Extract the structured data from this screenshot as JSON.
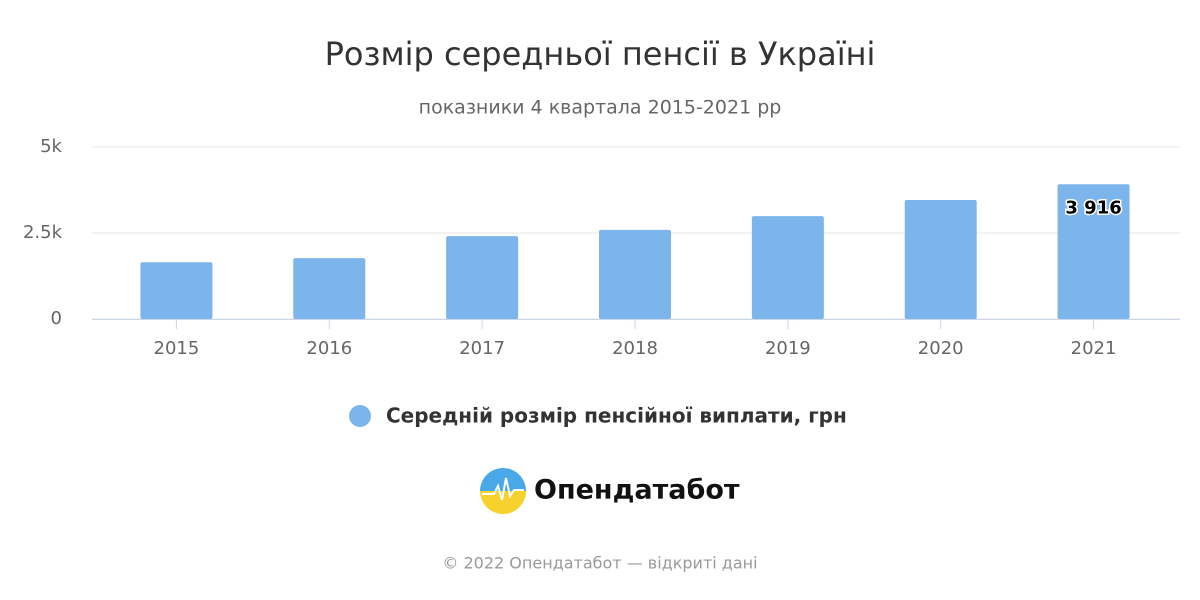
{
  "chart_data": {
    "type": "bar",
    "title": "Розмір середньої пенсії в Україні",
    "subtitle": "показники 4 квартала 2015-2021 рр",
    "categories": [
      "2015",
      "2016",
      "2017",
      "2018",
      "2019",
      "2020",
      "2021"
    ],
    "series": [
      {
        "name": "Середній розмір пенсійної виплати, грн",
        "color": "#7cb5ec",
        "values": [
          1650,
          1770,
          2410,
          2590,
          2990,
          3460,
          3916
        ],
        "value_labels": [
          null,
          null,
          null,
          null,
          null,
          null,
          "3 916"
        ]
      }
    ],
    "ylim": [
      0,
      5000
    ],
    "yticks": [
      0,
      {
        "value": 2500,
        "label": "2.5k"
      },
      {
        "value": 5000,
        "label": "5k"
      }
    ],
    "grid": true
  },
  "logo": "Опендатабот",
  "footer": "© 2022 Опендатабот — відкриті дані"
}
